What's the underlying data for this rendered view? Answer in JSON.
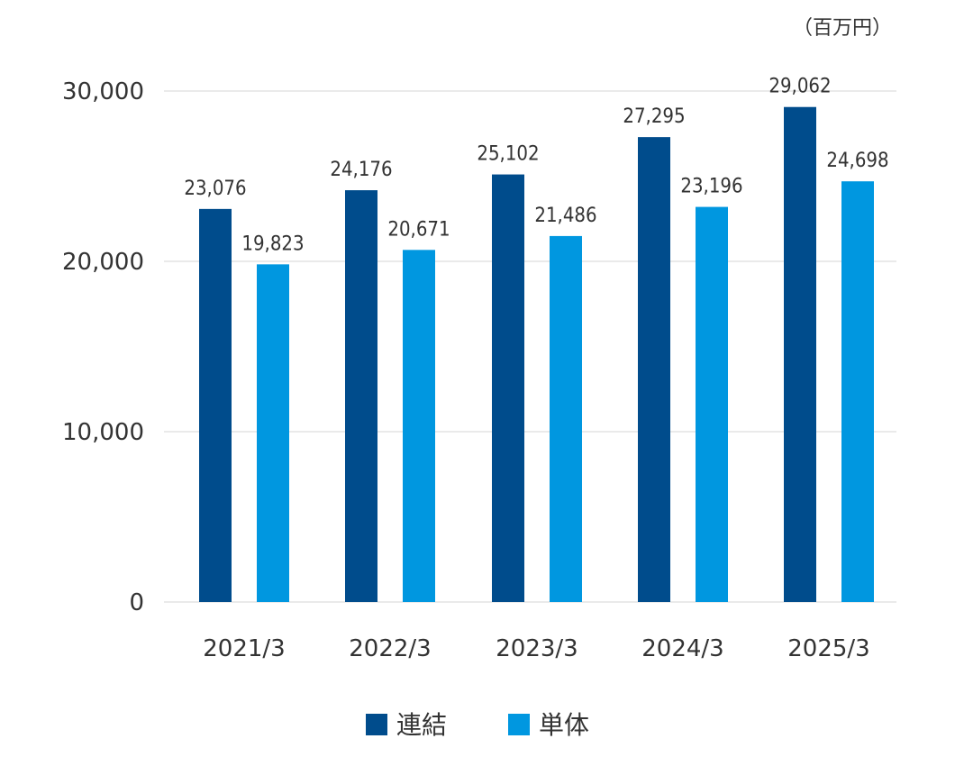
{
  "chart_data": {
    "type": "bar",
    "unit": "（百万円）",
    "categories": [
      "2021/3",
      "2022/3",
      "2023/3",
      "2024/3",
      "2025/3"
    ],
    "series": [
      {
        "name": "連結",
        "color": "#004c8c",
        "values": [
          23076,
          24176,
          25102,
          27295,
          29062
        ]
      },
      {
        "name": "単体",
        "color": "#0097e0",
        "values": [
          19823,
          20671,
          21486,
          23196,
          24698
        ]
      }
    ],
    "ylim": [
      0,
      30000
    ],
    "yticks": [
      0,
      10000,
      20000,
      30000
    ],
    "grid": true,
    "legend": "bottom-center",
    "data_labels": true
  }
}
